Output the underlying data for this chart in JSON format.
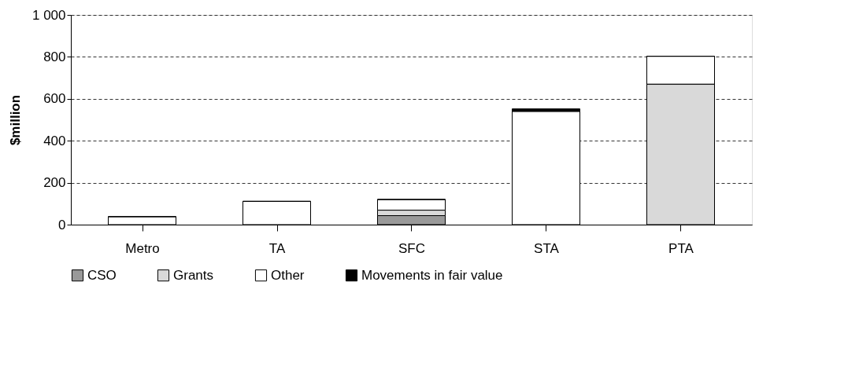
{
  "chart_data": {
    "type": "bar",
    "stacked": true,
    "ylabel": "$million",
    "categories": [
      "Metro",
      "TA",
      "SFC",
      "STA",
      "PTA"
    ],
    "series": [
      {
        "name": "CSO",
        "color": "#999999",
        "values": [
          0,
          0,
          43,
          0,
          0
        ]
      },
      {
        "name": "Grants",
        "color": "#d9d9d9",
        "values": [
          0,
          0,
          26,
          0,
          670
        ]
      },
      {
        "name": "Other",
        "color": "#ffffff",
        "values": [
          38,
          111,
          51,
          540,
          133
        ]
      },
      {
        "name": "Movements in fair value",
        "color": "#000000",
        "values": [
          0,
          0,
          0,
          12,
          0
        ]
      }
    ],
    "ylim": [
      0,
      1000
    ],
    "yticks": [
      0,
      200,
      400,
      600,
      800,
      {
        "value": 1000,
        "label": "1 000"
      }
    ],
    "grid": "y",
    "legend": "bottom"
  }
}
